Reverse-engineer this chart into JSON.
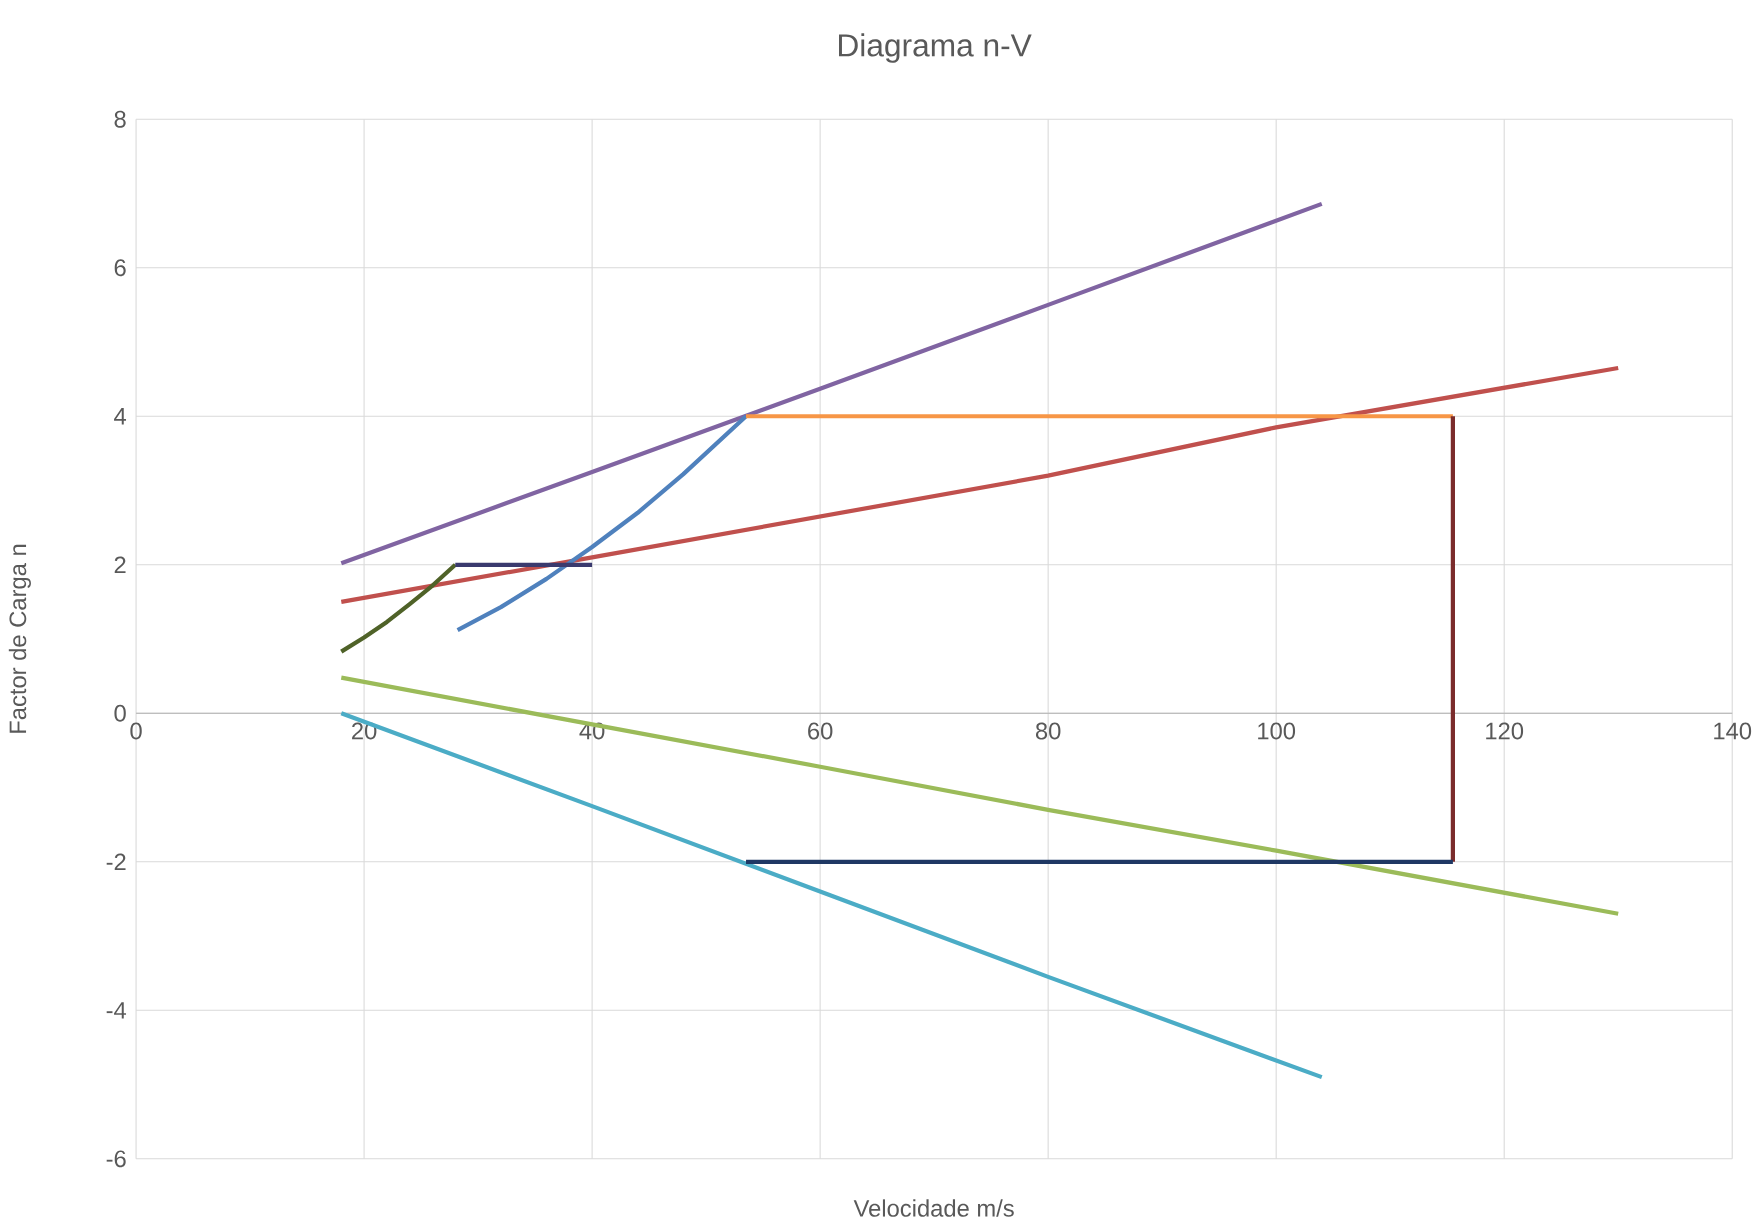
{
  "chart_data": {
    "type": "line",
    "title": "Diagrama n-V",
    "xlabel": "Velocidade m/s",
    "ylabel": "Factor de Carga n",
    "xlim": [
      0,
      140
    ],
    "xticks": [
      0,
      20,
      40,
      60,
      80,
      100,
      120,
      140
    ],
    "ylim": [
      -6,
      8
    ],
    "yticks": [
      -6,
      -4,
      -2,
      0,
      2,
      4,
      6,
      8
    ],
    "grid": true,
    "marker": "none",
    "line_style": "solid",
    "series": [
      {
        "color": "#8064a2",
        "x": [
          18,
          40,
          60,
          80,
          104
        ],
        "values": [
          2.02,
          3.25,
          4.37,
          5.5,
          6.86
        ]
      },
      {
        "color": "#c0504d",
        "x": [
          18,
          40,
          60,
          80,
          100,
          130
        ],
        "values": [
          1.5,
          2.1,
          2.65,
          3.2,
          3.85,
          4.65
        ]
      },
      {
        "color": "#9bbb59",
        "x": [
          18,
          40,
          60,
          80,
          100,
          130
        ],
        "values": [
          0.48,
          -0.15,
          -0.72,
          -1.3,
          -1.85,
          -2.7
        ]
      },
      {
        "color": "#4bacc6",
        "x": [
          18,
          40,
          60,
          80,
          104
        ],
        "values": [
          0,
          -1.25,
          -2.4,
          -3.55,
          -4.9
        ]
      },
      {
        "color": "#4f81bd",
        "x": [
          28.2,
          32,
          36,
          40,
          44,
          48,
          53.5
        ],
        "values": [
          1.12,
          1.43,
          1.81,
          2.24,
          2.7,
          3.22,
          4.0
        ]
      },
      {
        "color": "#4f6228",
        "x": [
          18,
          20,
          22,
          24,
          26,
          28
        ],
        "values": [
          0.83,
          1.02,
          1.23,
          1.47,
          1.72,
          2.0
        ]
      },
      {
        "color": "#3a3a6e",
        "x": [
          28,
          40
        ],
        "values": [
          2,
          2
        ]
      },
      {
        "color": "#f79646",
        "x": [
          53.5,
          115.5
        ],
        "values": [
          4,
          4
        ]
      },
      {
        "color": "#7b2c2c",
        "x": [
          115.5,
          115.5
        ],
        "values": [
          4,
          -2
        ]
      },
      {
        "color": "#1f3864",
        "x": [
          53.5,
          115.5
        ],
        "values": [
          -2,
          -2
        ]
      }
    ]
  }
}
